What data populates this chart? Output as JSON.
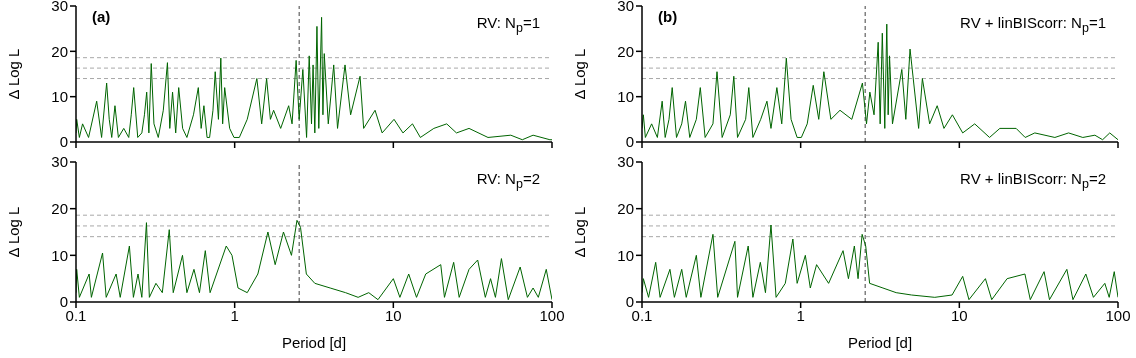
{
  "chart_data": [
    {
      "type": "line",
      "ylabel": "Δ Log L",
      "annotations": [
        "(a)",
        "RV: N$_{p}$=1"
      ],
      "log": "x",
      "xlim": [
        0.1,
        100
      ],
      "xticks": [
        0.1,
        1,
        10,
        100
      ],
      "ylim": [
        0,
        30
      ],
      "yticks": [
        0,
        10,
        20,
        30
      ],
      "tick_labels": "y",
      "grid": false,
      "line_style": "solid",
      "marker": "none",
      "ref_lines": [
        {
          "axis": "y",
          "value": 14,
          "color": "#a8a8a8",
          "line_style": "dashed"
        },
        {
          "axis": "y",
          "value": 16.3,
          "color": "#a8a8a8",
          "line_style": "dashed"
        },
        {
          "axis": "y",
          "value": 18.6,
          "color": "#a8a8a8",
          "line_style": "dashed"
        },
        {
          "axis": "x",
          "value": 2.55,
          "color": "#404040",
          "line_style": "dashed"
        }
      ],
      "series": [
        {
          "color": "#006400",
          "x": [
            0.1,
            0.101,
            0.105,
            0.11,
            0.12,
            0.135,
            0.145,
            0.156,
            0.162,
            0.168,
            0.176,
            0.185,
            0.2,
            0.215,
            0.223,
            0.231,
            0.245,
            0.26,
            0.27,
            0.279,
            0.288,
            0.298,
            0.31,
            0.33,
            0.355,
            0.377,
            0.39,
            0.406,
            0.425,
            0.444,
            0.47,
            0.5,
            0.55,
            0.59,
            0.615,
            0.64,
            0.67,
            0.695,
            0.73,
            0.754,
            0.79,
            0.818,
            0.84,
            0.865,
            0.93,
            0.99,
            1.07,
            1.2,
            1.38,
            1.48,
            1.59,
            1.68,
            1.76,
            1.95,
            2.19,
            2.3,
            2.44,
            2.55,
            2.69,
            2.84,
            2.95,
            3.05,
            3.12,
            3.2,
            3.3,
            3.39,
            3.53,
            3.6,
            3.67,
            3.89,
            4.21,
            4.45,
            4.96,
            5.38,
            6.17,
            6.5,
            7.67,
            8.5,
            10.1,
            11.5,
            13.2,
            14.8,
            18,
            21.7,
            25,
            30,
            39.5,
            55,
            65,
            76,
            97,
            100
          ],
          "values": [
            2,
            5,
            1,
            4,
            1,
            9,
            1,
            13,
            5,
            1,
            8,
            1,
            3,
            1,
            6,
            12,
            1,
            2,
            6,
            11,
            2,
            17.3,
            4,
            1,
            7,
            17.5,
            3,
            11,
            2,
            12,
            3,
            1,
            6,
            12,
            3,
            8,
            1,
            1,
            7,
            15.5,
            5,
            18.5,
            4,
            12,
            3,
            1,
            1,
            5,
            14,
            4,
            14,
            5,
            7,
            3,
            8,
            4,
            18,
            5,
            16,
            1,
            19,
            4,
            17,
            2,
            25.5,
            3,
            27.5,
            6,
            19.5,
            4,
            17,
            3,
            17,
            6,
            14.5,
            3,
            7,
            2,
            5,
            2,
            4,
            1,
            3,
            4,
            2,
            3,
            1,
            1.5,
            0.5,
            1.5,
            0.5,
            0.5
          ]
        }
      ]
    },
    {
      "type": "line",
      "ylabel": "Δ Log L",
      "annotations": [
        "(b)",
        "RV + linBIScorr: N$_{p}$=1"
      ],
      "log": "x",
      "xlim": [
        0.1,
        100
      ],
      "xticks": [
        0.1,
        1,
        10,
        100
      ],
      "ylim": [
        0,
        30
      ],
      "yticks": [
        0,
        10,
        20,
        30
      ],
      "tick_labels": "y",
      "grid": false,
      "line_style": "solid",
      "marker": "none",
      "ref_lines": [
        {
          "axis": "y",
          "value": 14,
          "color": "#a8a8a8",
          "line_style": "dashed"
        },
        {
          "axis": "y",
          "value": 16.3,
          "color": "#a8a8a8",
          "line_style": "dashed"
        },
        {
          "axis": "y",
          "value": 18.6,
          "color": "#a8a8a8",
          "line_style": "dashed"
        },
        {
          "axis": "x",
          "value": 2.55,
          "color": "#404040",
          "line_style": "dashed"
        }
      ],
      "series": [
        {
          "color": "#006400",
          "x": [
            0.1,
            0.102,
            0.105,
            0.115,
            0.125,
            0.134,
            0.14,
            0.148,
            0.155,
            0.165,
            0.178,
            0.188,
            0.2,
            0.22,
            0.233,
            0.25,
            0.28,
            0.297,
            0.32,
            0.36,
            0.379,
            0.4,
            0.45,
            0.471,
            0.5,
            0.56,
            0.613,
            0.65,
            0.708,
            0.76,
            0.812,
            0.87,
            0.95,
            1.01,
            1.1,
            1.2,
            1.3,
            1.4,
            1.55,
            1.77,
            2.1,
            2.45,
            2.6,
            2.73,
            2.9,
            3.08,
            3.17,
            3.27,
            3.39,
            3.49,
            3.56,
            3.63,
            3.79,
            4.34,
            4.6,
            4.89,
            5.54,
            5.85,
            6.5,
            7.25,
            8,
            9.04,
            10.5,
            12.5,
            15.5,
            18,
            22.8,
            26,
            29.9,
            40,
            48.8,
            60,
            71.5,
            80,
            88.7,
            100
          ],
          "values": [
            3,
            6,
            1,
            4,
            1,
            9,
            1,
            5,
            12,
            1,
            4,
            9,
            1,
            5,
            12,
            1,
            4,
            15.5,
            1,
            6,
            14.5,
            1,
            5,
            12,
            1,
            5,
            9,
            3,
            12,
            4,
            18.5,
            5,
            1,
            1,
            4,
            12.5,
            5,
            15.5,
            5,
            7,
            5,
            13,
            4,
            11,
            6,
            22,
            4,
            24,
            3,
            26,
            6,
            19,
            4,
            16,
            5,
            20.5,
            3,
            14,
            4,
            8,
            3,
            6,
            2,
            4,
            1,
            3,
            3,
            1,
            2,
            1,
            2,
            1,
            1.5,
            0.5,
            2,
            0.5
          ]
        }
      ]
    },
    {
      "type": "line",
      "ylabel": "Δ Log L",
      "xlabel": "Period [d]",
      "annotations": [
        "RV: N$_{p}$=2"
      ],
      "log": "x",
      "xlim": [
        0.1,
        100
      ],
      "xticks": [
        0.1,
        1,
        10,
        100
      ],
      "ylim": [
        0,
        30
      ],
      "yticks": [
        0,
        10,
        20,
        30
      ],
      "grid": false,
      "line_style": "solid",
      "marker": "none",
      "ref_lines": [
        {
          "axis": "y",
          "value": 14,
          "color": "#a8a8a8",
          "line_style": "dashed"
        },
        {
          "axis": "y",
          "value": 16.3,
          "color": "#a8a8a8",
          "line_style": "dashed"
        },
        {
          "axis": "y",
          "value": 18.6,
          "color": "#a8a8a8",
          "line_style": "dashed"
        },
        {
          "axis": "x",
          "value": 2.55,
          "color": "#404040",
          "line_style": "dashed"
        }
      ],
      "series": [
        {
          "color": "#006400",
          "x": [
            0.1,
            0.101,
            0.105,
            0.121,
            0.125,
            0.147,
            0.155,
            0.179,
            0.19,
            0.217,
            0.23,
            0.246,
            0.26,
            0.278,
            0.29,
            0.319,
            0.35,
            0.387,
            0.41,
            0.469,
            0.5,
            0.554,
            0.6,
            0.653,
            0.7,
            0.885,
            0.962,
            1.05,
            1.2,
            1.4,
            1.62,
            1.8,
            2.03,
            2.28,
            2.47,
            2.6,
            2.83,
            3.2,
            4,
            5,
            6,
            7,
            8,
            10,
            11,
            12.5,
            14,
            16,
            19.9,
            21,
            24,
            26,
            30,
            34,
            38,
            41,
            44,
            48,
            53,
            63,
            70,
            76,
            82,
            92,
            100
          ],
          "values": [
            2,
            7,
            1,
            6,
            1,
            10.5,
            1,
            6,
            1,
            12,
            1,
            6,
            1,
            17,
            1,
            4,
            2,
            15.5,
            2,
            10,
            2,
            7,
            2,
            11,
            2,
            12,
            10,
            3,
            2,
            6,
            15,
            8,
            15,
            10,
            17.5,
            16,
            6,
            4,
            3,
            2,
            1,
            2,
            0.5,
            5,
            1,
            6,
            1,
            6,
            8,
            1,
            8.5,
            1,
            7,
            9,
            1,
            5,
            1,
            9.3,
            0.5,
            7.5,
            1,
            3,
            1,
            7,
            0.5
          ]
        }
      ]
    },
    {
      "type": "line",
      "ylabel": "Δ Log L",
      "xlabel": "Period [d]",
      "annotations": [
        "RV + linBIScorr: N$_{p}$=2"
      ],
      "log": "x",
      "xlim": [
        0.1,
        100
      ],
      "xticks": [
        0.1,
        1,
        10,
        100
      ],
      "ylim": [
        0,
        30
      ],
      "yticks": [
        0,
        10,
        20,
        30
      ],
      "grid": false,
      "line_style": "solid",
      "marker": "none",
      "ref_lines": [
        {
          "axis": "y",
          "value": 14,
          "color": "#a8a8a8",
          "line_style": "dashed"
        },
        {
          "axis": "y",
          "value": 16.3,
          "color": "#a8a8a8",
          "line_style": "dashed"
        },
        {
          "axis": "y",
          "value": 18.6,
          "color": "#a8a8a8",
          "line_style": "dashed"
        },
        {
          "axis": "x",
          "value": 2.55,
          "color": "#404040",
          "line_style": "dashed"
        }
      ],
      "series": [
        {
          "color": "#006400",
          "x": [
            0.1,
            0.102,
            0.11,
            0.122,
            0.13,
            0.15,
            0.16,
            0.178,
            0.19,
            0.22,
            0.235,
            0.28,
            0.3,
            0.385,
            0.4,
            0.467,
            0.5,
            0.557,
            0.6,
            0.65,
            0.7,
            0.8,
            0.893,
            0.95,
            1.07,
            1.15,
            1.26,
            1.5,
            1.85,
            2,
            2.18,
            2.3,
            2.44,
            2.57,
            2.72,
            3.3,
            4,
            5,
            7,
            9,
            10.5,
            11.5,
            14.6,
            16,
            20,
            25.9,
            28,
            34.2,
            37,
            47.6,
            52,
            62.7,
            70,
            82.6,
            88,
            94.7,
            100
          ],
          "values": [
            2,
            5,
            1,
            8.5,
            1,
            7,
            1,
            7,
            1,
            10,
            1,
            14.5,
            1,
            13,
            1,
            12,
            1,
            8.5,
            2,
            16.5,
            1,
            4,
            13.5,
            4,
            10,
            3,
            8,
            4,
            11,
            5,
            12,
            5,
            14.5,
            12,
            4,
            3,
            2,
            1.5,
            1,
            1.5,
            5.5,
            0.5,
            5,
            0.5,
            5,
            6,
            0.5,
            6.5,
            0.5,
            7,
            0.5,
            6,
            1,
            4,
            1,
            6.5,
            1
          ]
        }
      ]
    }
  ]
}
